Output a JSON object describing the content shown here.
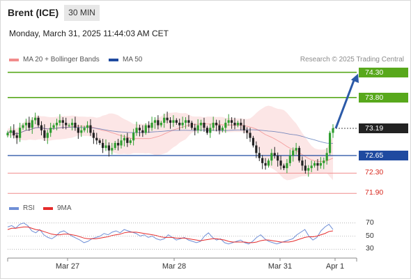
{
  "header": {
    "instrument": "Brent (ICE)",
    "timeframe": "30 MIN",
    "timestamp": "Monday, March 31, 2025 11:44:03 AM CET"
  },
  "legend": {
    "bollinger": "MA 20 + Bollinger Bands",
    "ma50": "MA 50",
    "rsi": "RSI",
    "rsi_ma": "9MA",
    "copyright": "Research © 2025 Trading Central"
  },
  "colors": {
    "candle_up": "#2f9e2f",
    "candle_down": "#222222",
    "bollinger": "#f28c8c",
    "ma50": "#1f4aa0",
    "resistance": "#58a81c",
    "pivot": "#1f4aa0",
    "support": "#f08c8c",
    "current_price": "#222222",
    "forecast_arrow": "#2c5aa8",
    "rsi": "#6f8fd6",
    "rsi_ma": "#e52b2b"
  },
  "chart_data": {
    "type": "candlestick",
    "y_range": [
      71.82,
      74.42
    ],
    "x_tick_labels": [
      "Mar 27",
      "Mar 28",
      "Mar 31",
      "Apr 1"
    ],
    "levels": [
      {
        "label": "74.30",
        "value": 74.3,
        "role": "resistance"
      },
      {
        "label": "73.80",
        "value": 73.8,
        "role": "resistance"
      },
      {
        "label": "73.19",
        "value": 73.19,
        "role": "current_price"
      },
      {
        "label": "72.65",
        "value": 72.65,
        "role": "pivot"
      },
      {
        "label": "72.30",
        "value": 72.3,
        "role": "support"
      },
      {
        "label": "71.90",
        "value": 71.9,
        "role": "support"
      }
    ],
    "forecast": {
      "from": 73.19,
      "to": 74.3
    },
    "close_series": [
      73.1,
      73.15,
      73.05,
      73.0,
      73.2,
      73.25,
      73.3,
      73.2,
      73.35,
      73.4,
      73.25,
      73.15,
      73.0,
      73.1,
      73.2,
      73.25,
      73.3,
      73.35,
      73.3,
      73.25,
      73.25,
      73.3,
      73.2,
      73.1,
      73.15,
      73.2,
      73.25,
      73.1,
      73.0,
      72.95,
      72.9,
      72.8,
      72.85,
      72.75,
      72.8,
      72.9,
      72.85,
      72.95,
      73.0,
      72.9,
      72.95,
      73.1,
      73.2,
      73.15,
      73.1,
      73.25,
      73.2,
      73.3,
      73.35,
      73.25,
      73.3,
      73.4,
      73.35,
      73.3,
      73.35,
      73.3,
      73.25,
      73.3,
      73.35,
      73.3,
      73.2,
      73.15,
      73.25,
      73.3,
      73.2,
      73.1,
      73.2,
      73.3,
      73.25,
      73.15,
      73.2,
      73.3,
      73.35,
      73.3,
      73.25,
      73.3,
      73.25,
      73.15,
      73.1,
      73.0,
      72.85,
      72.7,
      72.6,
      72.5,
      72.45,
      72.55,
      72.7,
      72.65,
      72.55,
      72.45,
      72.4,
      72.5,
      72.65,
      72.75,
      72.8,
      72.55,
      72.45,
      72.35,
      72.4,
      72.45,
      72.5,
      72.45,
      72.5,
      72.55,
      72.7,
      73.1,
      73.19
    ],
    "rsi_axis": [
      30,
      50,
      70
    ],
    "rsi": [
      64,
      66,
      62,
      68,
      70,
      66,
      58,
      55,
      60,
      52,
      48,
      46,
      50,
      56,
      58,
      54,
      50,
      47,
      44,
      40,
      42,
      46,
      48,
      50,
      54,
      52,
      56,
      58,
      55,
      60,
      58,
      56,
      54,
      50,
      52,
      48,
      50,
      46,
      44,
      46,
      52,
      48,
      44,
      46,
      48,
      44,
      42,
      40,
      42,
      50,
      55,
      48,
      44,
      46,
      40,
      38,
      40,
      42,
      44,
      40,
      38,
      42,
      48,
      52,
      46,
      42,
      40,
      38,
      40,
      42,
      44,
      46,
      52,
      56,
      60,
      50,
      44,
      48,
      58,
      64,
      68,
      60
    ],
    "rsi_ma": [
      60,
      62,
      62,
      63,
      64,
      64,
      62,
      60,
      59,
      57,
      55,
      53,
      52,
      52,
      53,
      53,
      52,
      51,
      49,
      47,
      46,
      46,
      46,
      47,
      48,
      49,
      51,
      52,
      53,
      55,
      56,
      56,
      56,
      55,
      54,
      53,
      52,
      51,
      49,
      48,
      48,
      48,
      47,
      47,
      47,
      46,
      45,
      44,
      43,
      44,
      45,
      46,
      46,
      45,
      44,
      42,
      41,
      41,
      41,
      41,
      40,
      40,
      41,
      43,
      44,
      44,
      43,
      42,
      41,
      41,
      41,
      42,
      44,
      46,
      48,
      49,
      49,
      50,
      52,
      54,
      57,
      58
    ]
  }
}
